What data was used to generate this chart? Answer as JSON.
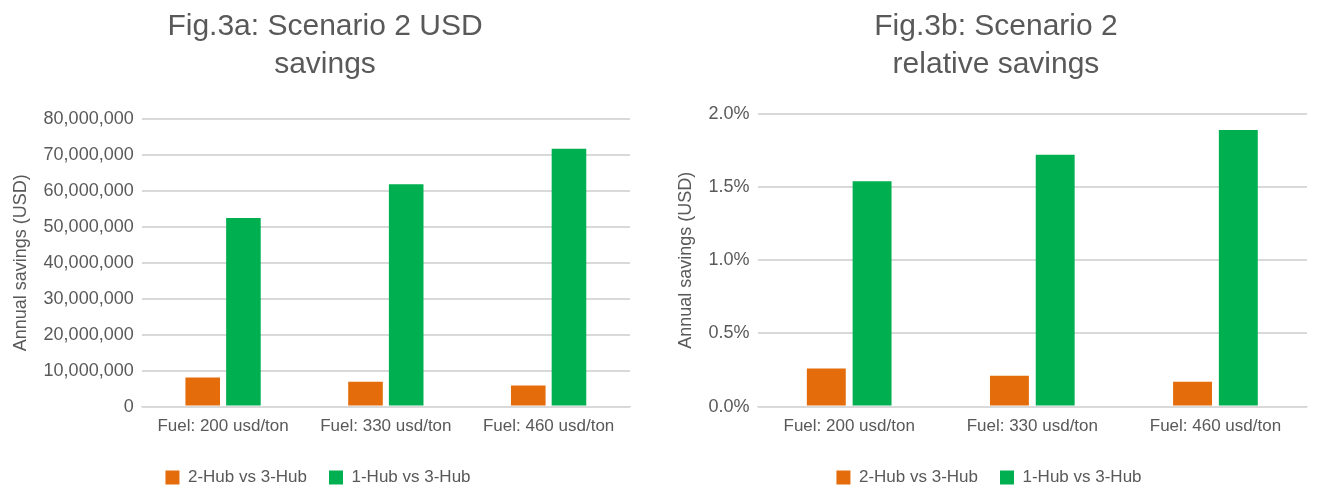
{
  "chart_data": [
    {
      "type": "bar",
      "title": "Fig.3a: Scenario 2 USD savings",
      "ylabel": "Annual savings (USD)",
      "categories": [
        "Fuel: 200 usd/ton",
        "Fuel: 330 usd/ton",
        "Fuel: 460 usd/ton"
      ],
      "series": [
        {
          "name": "2-Hub vs 3-Hub",
          "color": "#e46c0a",
          "values": [
            8100000,
            6900000,
            5900000
          ]
        },
        {
          "name": "1-Hub vs 3-Hub",
          "color": "#00b050",
          "values": [
            52400000,
            61800000,
            71700000
          ]
        }
      ],
      "ylim": [
        0,
        80000000
      ],
      "yticks": [
        {
          "value": 0,
          "label": "0"
        },
        {
          "value": 10000000,
          "label": "10,000,000"
        },
        {
          "value": 20000000,
          "label": "20,000,000"
        },
        {
          "value": 30000000,
          "label": "30,000,000"
        },
        {
          "value": 40000000,
          "label": "40,000,000"
        },
        {
          "value": 50000000,
          "label": "50,000,000"
        },
        {
          "value": 60000000,
          "label": "60,000,000"
        },
        {
          "value": 70000000,
          "label": "70,000,000"
        },
        {
          "value": 80000000,
          "label": "80,000,000"
        }
      ],
      "grid": "y",
      "legend": "bottom"
    },
    {
      "type": "bar",
      "title": "Fig.3b: Scenario 2 relative savings",
      "ylabel": "Annual savings (USD)",
      "categories": [
        "Fuel: 200 usd/ton",
        "Fuel: 330 usd/ton",
        "Fuel: 460 usd/ton"
      ],
      "series": [
        {
          "name": "2-Hub vs 3-Hub",
          "color": "#e46c0a",
          "values": [
            0.26,
            0.21,
            0.17
          ]
        },
        {
          "name": "1-Hub vs 3-Hub",
          "color": "#00b050",
          "values": [
            1.54,
            1.72,
            1.89
          ]
        }
      ],
      "ylim": [
        0,
        2
      ],
      "yticks": [
        {
          "value": 0,
          "label": "0.0%"
        },
        {
          "value": 0.5,
          "label": "0.5%"
        },
        {
          "value": 1,
          "label": "1.0%"
        },
        {
          "value": 1.5,
          "label": "1.5%"
        },
        {
          "value": 2,
          "label": "2.0%"
        }
      ],
      "grid": "y",
      "legend": "bottom"
    }
  ]
}
